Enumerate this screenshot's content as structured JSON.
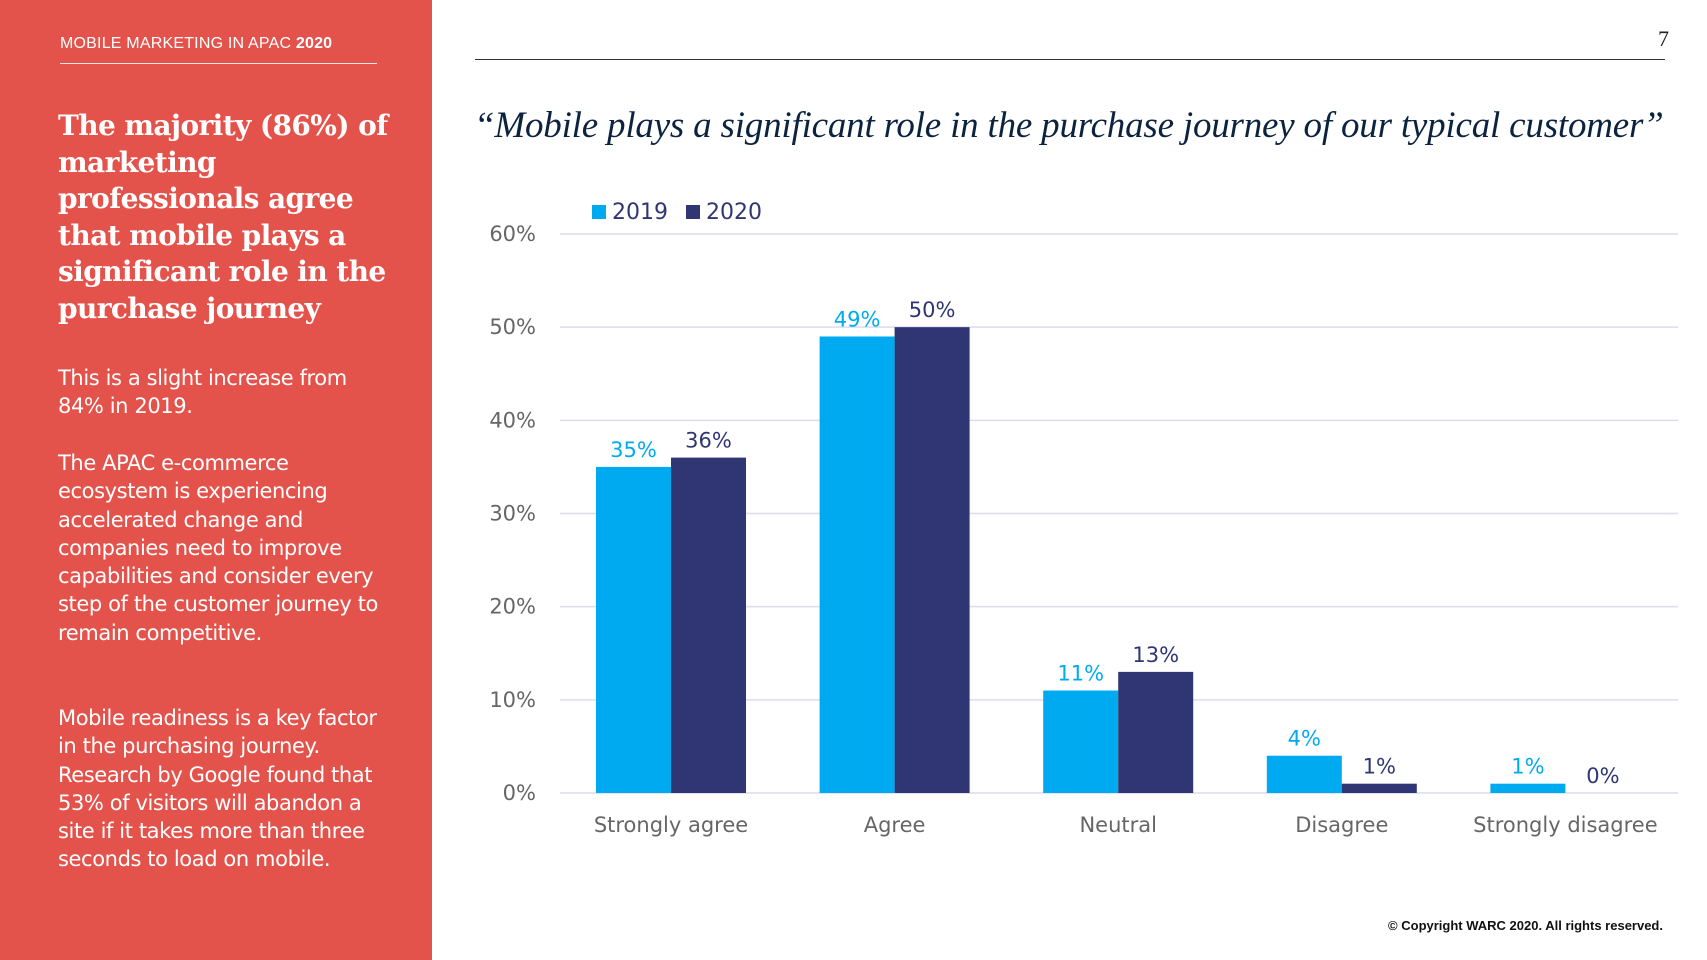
{
  "sidebar": {
    "report_label": "MOBILE MARKETING IN APAC",
    "report_year": "2020",
    "headline": "The majority (86%) of marketing professionals agree that mobile plays a significant role in the purchase journey",
    "para_1": "This is a slight increase from 84% in 2019.",
    "para_2": "The APAC e-commerce ecosystem is experiencing accelerated change and companies need to improve capabilities and consider every step of the customer journey to remain competitive.",
    "para_3": "Mobile readiness is a key factor in the purchasing journey. Research by Google found that 53% of visitors will abandon a site if it takes more than three seconds to load on mobile."
  },
  "page_number": "7",
  "copyright": "© Copyright WARC 2020. All rights reserved.",
  "chart_data": {
    "type": "bar",
    "title": "“Mobile plays a significant role in the purchase journey of our typical customer”",
    "categories": [
      "Strongly agree",
      "Agree",
      "Neutral",
      "Disagree",
      "Strongly disagree"
    ],
    "series": [
      {
        "name": "2019",
        "values": [
          35,
          49,
          11,
          4,
          1
        ],
        "labels": [
          "35%",
          "49%",
          "11%",
          "4%",
          "1%"
        ],
        "color": "#00aaf0"
      },
      {
        "name": "2020",
        "values": [
          36,
          50,
          13,
          1,
          0
        ],
        "labels": [
          "36%",
          "50%",
          "13%",
          "1%",
          "0%"
        ],
        "color": "#303674"
      }
    ],
    "yticks": [
      0,
      10,
      20,
      30,
      40,
      50,
      60
    ],
    "ytick_labels": [
      "0%",
      "10%",
      "20%",
      "30%",
      "40%",
      "50%",
      "60%"
    ],
    "ylim": [
      0,
      60
    ],
    "xlabel": "",
    "ylabel": "",
    "grid": true,
    "legend_position": "top-left",
    "colors": {
      "gridline": "#dcdcec",
      "tick_text": "#666666"
    }
  }
}
